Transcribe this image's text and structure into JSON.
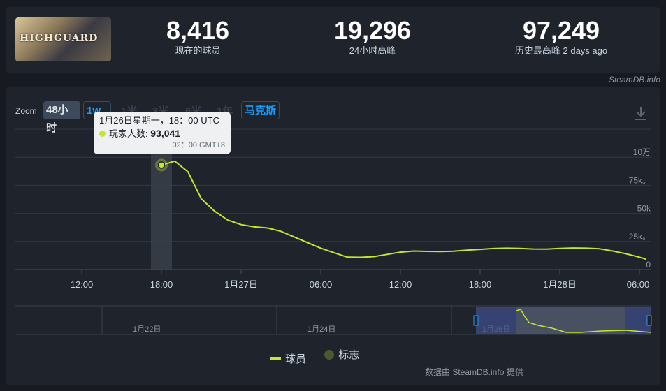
{
  "game": {
    "thumb_text": "HIGHGUARD"
  },
  "stats": [
    {
      "value": "8,416",
      "label": "现在的球员"
    },
    {
      "value": "19,296",
      "label": "24小时高峰"
    },
    {
      "value": "97,249",
      "label": "历史最高峰 2 days ago"
    }
  ],
  "credit": "SteamDB.info",
  "zoom": {
    "label": "Zoom",
    "buttons": [
      "48小时",
      "1w",
      "1米",
      "3米",
      "6米",
      "1年",
      "马克斯"
    ]
  },
  "tooltip": {
    "date": "1月26日星期一，18：00 UTC",
    "series_label": "玩家人数:",
    "value": "93,041",
    "local_time": "02：00 GMT+8"
  },
  "legend": {
    "players": "球员",
    "flags": "标志"
  },
  "source": "数据由 SteamDB.info 提供",
  "colors": {
    "line": "#c6e52d",
    "accent": "#1a9fff",
    "background": "#171a21",
    "panel": "#1f232c"
  },
  "chart_data": {
    "type": "line",
    "x_unit": "hours since 2026-01-25 00:00 UTC is not shown; x given as time labels",
    "series": [
      {
        "name": "球员",
        "points": [
          {
            "t": "01-26 18:00",
            "y": 93041
          },
          {
            "t": "01-26 19:00",
            "y": 96500
          },
          {
            "t": "01-26 20:00",
            "y": 87000
          },
          {
            "t": "01-26 21:00",
            "y": 63000
          },
          {
            "t": "01-26 22:00",
            "y": 52000
          },
          {
            "t": "01-26 23:00",
            "y": 44000
          },
          {
            "t": "01-27 00:00",
            "y": 40000
          },
          {
            "t": "01-27 01:00",
            "y": 38000
          },
          {
            "t": "01-27 02:00",
            "y": 37000
          },
          {
            "t": "01-27 03:00",
            "y": 34000
          },
          {
            "t": "01-27 04:00",
            "y": 29000
          },
          {
            "t": "01-27 05:00",
            "y": 24000
          },
          {
            "t": "01-27 06:00",
            "y": 19000
          },
          {
            "t": "01-27 07:00",
            "y": 15000
          },
          {
            "t": "01-27 08:00",
            "y": 11000
          },
          {
            "t": "01-27 09:00",
            "y": 10900
          },
          {
            "t": "01-27 10:00",
            "y": 11500
          },
          {
            "t": "01-27 11:00",
            "y": 13500
          },
          {
            "t": "01-27 12:00",
            "y": 15500
          },
          {
            "t": "01-27 13:00",
            "y": 16500
          },
          {
            "t": "01-27 14:00",
            "y": 16200
          },
          {
            "t": "01-27 15:00",
            "y": 16000
          },
          {
            "t": "01-27 16:00",
            "y": 16300
          },
          {
            "t": "01-27 17:00",
            "y": 17200
          },
          {
            "t": "01-27 18:00",
            "y": 18000
          },
          {
            "t": "01-27 19:00",
            "y": 18700
          },
          {
            "t": "01-27 20:00",
            "y": 19000
          },
          {
            "t": "01-27 21:00",
            "y": 18800
          },
          {
            "t": "01-27 22:00",
            "y": 18300
          },
          {
            "t": "01-27 23:00",
            "y": 18200
          },
          {
            "t": "01-28 00:00",
            "y": 18800
          },
          {
            "t": "01-28 01:00",
            "y": 19200
          },
          {
            "t": "01-28 02:00",
            "y": 19000
          },
          {
            "t": "01-28 03:00",
            "y": 18500
          },
          {
            "t": "01-28 04:00",
            "y": 16500
          },
          {
            "t": "01-28 05:00",
            "y": 14000
          },
          {
            "t": "01-28 06:00",
            "y": 11000
          },
          {
            "t": "01-28 06:30",
            "y": 9200
          }
        ]
      }
    ],
    "x_tick_labels": [
      "12:00",
      "18:00",
      "1月27日",
      "06:00",
      "12:00",
      "18:00",
      "1月28日",
      "06:00"
    ],
    "y_tick_labels": [
      "0",
      "25k。",
      "50k",
      "75k。",
      "10万"
    ],
    "ylim": [
      0,
      125000
    ],
    "grid": true,
    "highlight": {
      "t": "01-26 18:00",
      "y": 93041
    },
    "navigator_labels": [
      "1月22日",
      "1月24日",
      "1月26日"
    ],
    "legend_position": "bottom"
  }
}
